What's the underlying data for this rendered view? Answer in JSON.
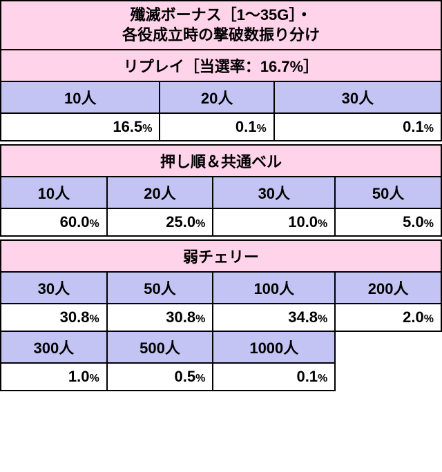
{
  "title_line1": "殲滅ボーナス［1～35G］・",
  "title_line2": "各役成立時の撃破数振り分け",
  "sections": [
    {
      "name": "リプレイ［当選率：16.7%］",
      "cols": 3,
      "headers": [
        "10人",
        "20人",
        "30人"
      ],
      "rows": [
        [
          {
            "v": "16.5",
            "u": "%"
          },
          {
            "v": "0.1",
            "u": "%"
          },
          {
            "v": "0.1",
            "u": "%"
          }
        ]
      ]
    },
    {
      "name": "押し順＆共通ベル",
      "cols": 4,
      "headers": [
        "10人",
        "20人",
        "30人",
        "50人"
      ],
      "rows": [
        [
          {
            "v": "60.0",
            "u": "%"
          },
          {
            "v": "25.0",
            "u": "%"
          },
          {
            "v": "10.0",
            "u": "%"
          },
          {
            "v": "5.0",
            "u": "%"
          }
        ]
      ]
    },
    {
      "name": "弱チェリー",
      "cols": 4,
      "headers": [
        "30人",
        "50人",
        "100人",
        "200人"
      ],
      "rows": [
        [
          {
            "v": "30.8",
            "u": "%"
          },
          {
            "v": "30.8",
            "u": "%"
          },
          {
            "v": "34.8",
            "u": "%"
          },
          {
            "v": "2.0",
            "u": "%"
          }
        ]
      ],
      "headers2": [
        "300人",
        "500人",
        "1000人"
      ],
      "rows2": [
        [
          {
            "v": "1.0",
            "u": "%"
          },
          {
            "v": "0.5",
            "u": "%"
          },
          {
            "v": "0.1",
            "u": "%"
          }
        ]
      ]
    }
  ],
  "colors": {
    "section_bg": "#ffd3e9",
    "header_bg": "#c3c4f4",
    "value_bg": "#ffffff",
    "border": "#000000"
  }
}
